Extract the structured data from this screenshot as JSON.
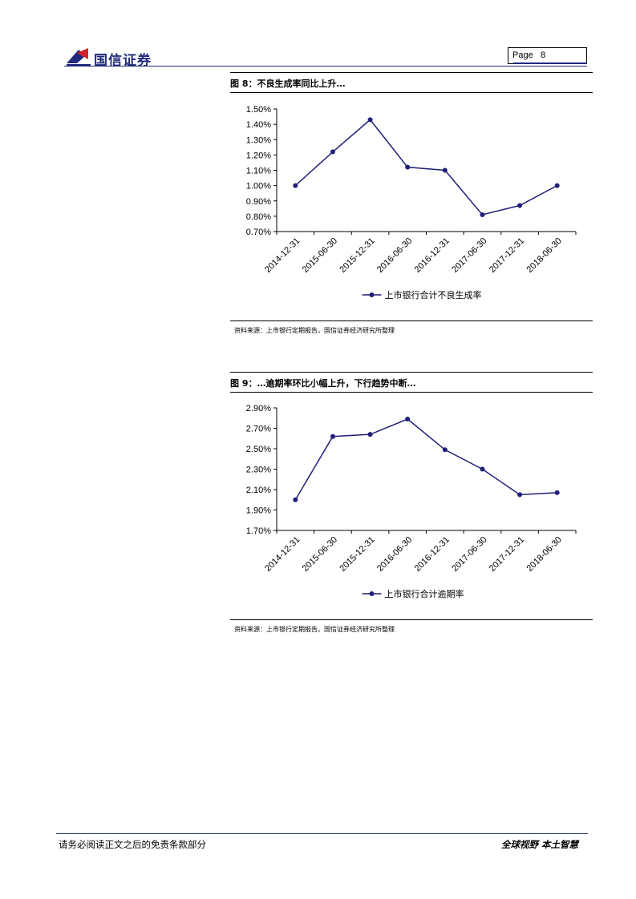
{
  "header": {
    "company": "国信证券",
    "page_label": "Page",
    "page_number": "8",
    "brand_colors": {
      "navy": "#1f2a7a",
      "red": "#d2232a"
    },
    "logo_icon": "guosen-logo-icon"
  },
  "figures": [
    {
      "title": "图 8：不良生成率同比上升…",
      "source": "资料来源：上市银行定期报告，国信证券经济研究所整理"
    },
    {
      "title": "图 9：…逾期率环比小幅上升，下行趋势中断…",
      "source": "资料来源：上市银行定期报告，国信证券经济研究所整理"
    }
  ],
  "chart_data": [
    {
      "type": "line",
      "title": "",
      "categories": [
        "2014-12-31",
        "2015-06-30",
        "2015-12-31",
        "2016-06-30",
        "2016-12-31",
        "2017-06-30",
        "2017-12-31",
        "2018-06-30"
      ],
      "series": [
        {
          "name": "上市银行合计不良生成率",
          "values": [
            1.0,
            1.22,
            1.43,
            1.12,
            1.1,
            0.81,
            0.87,
            1.0
          ],
          "color": "#1f1f7a"
        }
      ],
      "yticks": [
        "1.50%",
        "1.40%",
        "1.30%",
        "1.20%",
        "1.10%",
        "1.00%",
        "0.90%",
        "0.80%",
        "0.70%"
      ],
      "ylim": [
        0.7,
        1.5
      ],
      "yunit": "%",
      "grid": false,
      "legend": "bottom-center"
    },
    {
      "type": "line",
      "title": "",
      "categories": [
        "2014-12-31",
        "2015-06-30",
        "2015-12-31",
        "2016-06-30",
        "2016-12-31",
        "2017-06-30",
        "2017-12-31",
        "2018-06-30"
      ],
      "series": [
        {
          "name": "上市银行合计逾期率",
          "values": [
            2.0,
            2.62,
            2.64,
            2.79,
            2.49,
            2.3,
            2.05,
            2.07
          ],
          "color": "#1f1f7a"
        }
      ],
      "yticks": [
        "2.90%",
        "2.70%",
        "2.50%",
        "2.30%",
        "2.10%",
        "1.90%",
        "1.70%"
      ],
      "ylim": [
        1.7,
        2.9
      ],
      "yunit": "%",
      "grid": false,
      "legend": "bottom-center"
    }
  ],
  "footer": {
    "disclaimer": "请务必阅读正文之后的免责条款部分",
    "slogan": "全球视野  本土智慧"
  }
}
